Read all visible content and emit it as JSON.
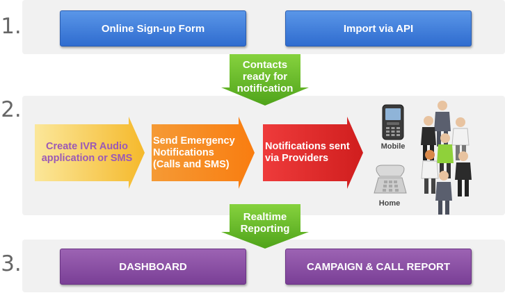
{
  "steps": [
    "1.",
    "2.",
    "3."
  ],
  "step1": {
    "signup": "Online Sign-up Form",
    "api": "Import via API"
  },
  "arrow1": {
    "line1": "Contacts",
    "line2": "ready for",
    "line3": "notification"
  },
  "step2": {
    "ivr": {
      "line1": "Create IVR Audio",
      "line2": "application or SMS"
    },
    "send": {
      "line1": "Send Emergency",
      "line2": "Notifications",
      "line3": "(Calls and SMS)"
    },
    "sent": {
      "line1": "Notifications sent",
      "line2": "via Providers"
    },
    "mobile": "Mobile",
    "home": "Home"
  },
  "arrow2": {
    "line1": "Realtime",
    "line2": "Reporting"
  },
  "step3": {
    "dashboard": "DASHBOARD",
    "report": "CAMPAIGN & CALL REPORT"
  },
  "colors": {
    "blue": "#3a78d8",
    "green": "#6cbf2b",
    "yellow": "#f6c03a",
    "orange": "#f7891f",
    "red": "#e02a2a",
    "purple": "#8a4ea6"
  }
}
